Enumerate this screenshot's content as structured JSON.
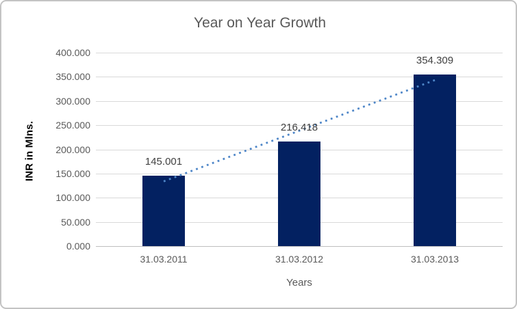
{
  "chart_data": {
    "type": "bar",
    "title": "Year on Year Growth",
    "xlabel": "Years",
    "ylabel": "INR in Mlns.",
    "categories": [
      "31.03.2011",
      "31.03.2012",
      "31.03.2013"
    ],
    "values": [
      145.001,
      216.418,
      354.309
    ],
    "data_labels": [
      "145.001",
      "216.418",
      "354.309"
    ],
    "ylim": [
      0,
      400
    ],
    "ytick_step": 50,
    "ytick_labels": [
      "0.000",
      "50.000",
      "100.000",
      "150.000",
      "200.000",
      "250.000",
      "300.000",
      "350.000",
      "400.000"
    ],
    "grid": true,
    "legend": "none",
    "trendline": {
      "style": "dotted",
      "name": "linear-trendline",
      "values": [
        133.92,
        238.58,
        343.23
      ],
      "color": "#4e86c8"
    },
    "colors": {
      "bar": "#032161",
      "gridline": "#d9d9d9",
      "axis_line": "#bfbfbf",
      "title_text": "#595959",
      "tick_text": "#595959",
      "data_label_text": "#404040",
      "y_axis_title_text": "#000000",
      "frame_border": "#c3c3c3",
      "background": "#ffffff"
    }
  }
}
